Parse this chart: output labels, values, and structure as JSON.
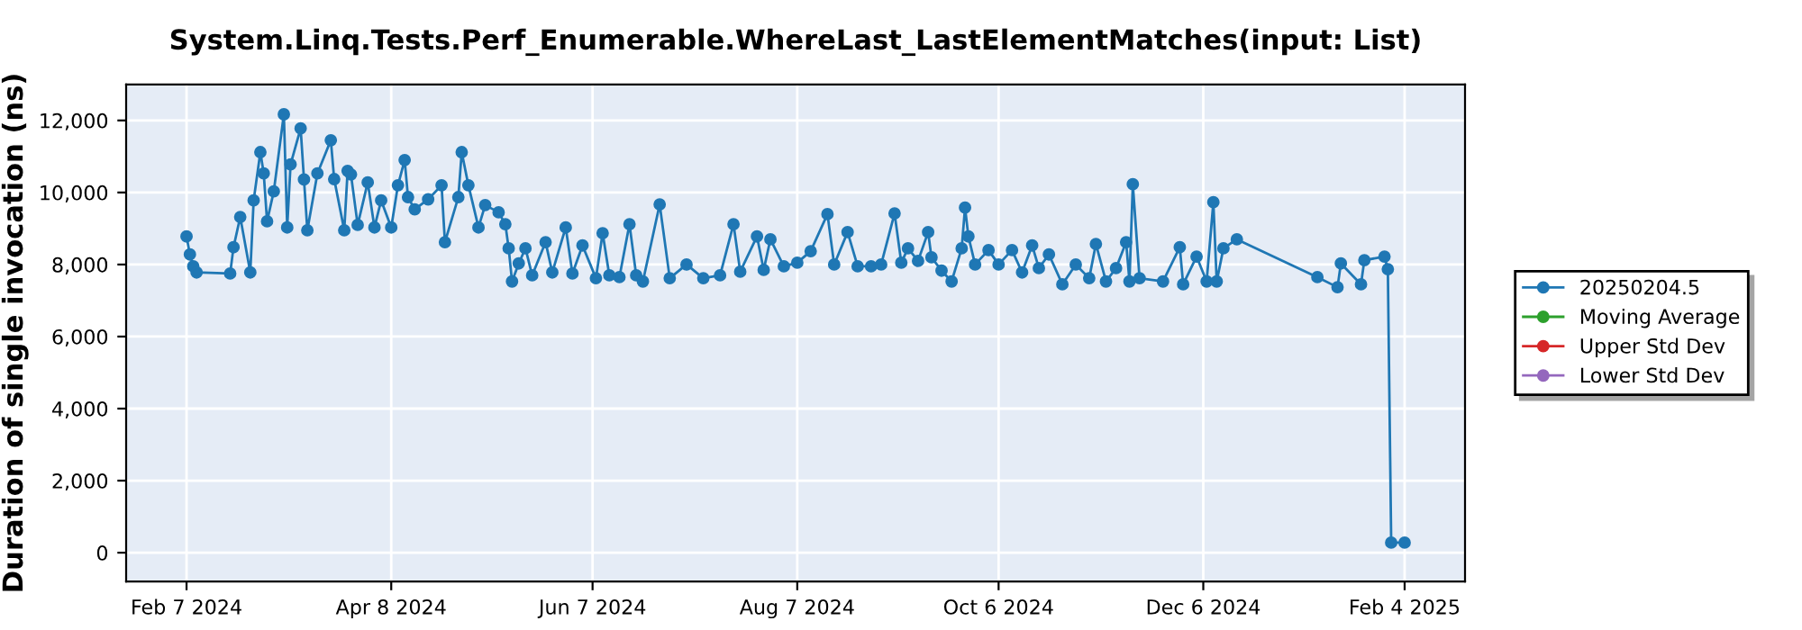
{
  "chart_data": {
    "type": "line",
    "title": "System.Linq.Tests.Perf_Enumerable.WhereLast_LastElementMatches(input: List)",
    "ylabel": "Duration of single invocation (ns)",
    "xlim": [
      "2024-01-20",
      "2025-02-22"
    ],
    "xticks": [
      {
        "value": "2024-02-07",
        "label": "Feb 7 2024"
      },
      {
        "value": "2024-04-08",
        "label": "Apr 8 2024"
      },
      {
        "value": "2024-06-07",
        "label": "Jun 7 2024"
      },
      {
        "value": "2024-08-07",
        "label": "Aug 7 2024"
      },
      {
        "value": "2024-10-06",
        "label": "Oct 6 2024"
      },
      {
        "value": "2024-12-06",
        "label": "Dec 6 2024"
      },
      {
        "value": "2025-02-04",
        "label": "Feb 4 2025"
      }
    ],
    "ylim": [
      -800,
      13000
    ],
    "yticks": [
      0,
      {
        "value": 2000,
        "label": "2,000"
      },
      {
        "value": 4000,
        "label": "4,000"
      },
      {
        "value": 6000,
        "label": "6,000"
      },
      {
        "value": 8000,
        "label": "8,000"
      },
      {
        "value": 10000,
        "label": "10,000"
      },
      {
        "value": 12000,
        "label": "12,000"
      }
    ],
    "grid": true,
    "legend": "right",
    "marker": "circle",
    "line_style": "solid",
    "series": [
      {
        "name": "20250204.5",
        "color": "#1f77b4",
        "x": [
          "2024-02-07",
          "2024-02-08",
          "2024-02-09",
          "2024-02-10",
          "2024-02-20",
          "2024-02-21",
          "2024-02-23",
          "2024-02-26",
          "2024-02-27",
          "2024-02-29",
          "2024-03-01",
          "2024-03-02",
          "2024-03-04",
          "2024-03-07",
          "2024-03-08",
          "2024-03-09",
          "2024-03-12",
          "2024-03-13",
          "2024-03-14",
          "2024-03-17",
          "2024-03-21",
          "2024-03-22",
          "2024-03-25",
          "2024-03-26",
          "2024-03-27",
          "2024-03-29",
          "2024-04-01",
          "2024-04-03",
          "2024-04-05",
          "2024-04-08",
          "2024-04-10",
          "2024-04-12",
          "2024-04-13",
          "2024-04-15",
          "2024-04-19",
          "2024-04-23",
          "2024-04-24",
          "2024-04-28",
          "2024-04-29",
          "2024-05-01",
          "2024-05-04",
          "2024-05-06",
          "2024-05-10",
          "2024-05-12",
          "2024-05-13",
          "2024-05-14",
          "2024-05-16",
          "2024-05-18",
          "2024-05-20",
          "2024-05-24",
          "2024-05-26",
          "2024-05-30",
          "2024-06-01",
          "2024-06-04",
          "2024-06-08",
          "2024-06-10",
          "2024-06-12",
          "2024-06-15",
          "2024-06-18",
          "2024-06-20",
          "2024-06-22",
          "2024-06-27",
          "2024-06-30",
          "2024-07-05",
          "2024-07-10",
          "2024-07-15",
          "2024-07-19",
          "2024-07-21",
          "2024-07-26",
          "2024-07-28",
          "2024-07-30",
          "2024-08-03",
          "2024-08-07",
          "2024-08-11",
          "2024-08-16",
          "2024-08-18",
          "2024-08-22",
          "2024-08-25",
          "2024-08-29",
          "2024-09-01",
          "2024-09-05",
          "2024-09-07",
          "2024-09-09",
          "2024-09-12",
          "2024-09-15",
          "2024-09-16",
          "2024-09-19",
          "2024-09-22",
          "2024-09-25",
          "2024-09-26",
          "2024-09-27",
          "2024-09-29",
          "2024-10-03",
          "2024-10-06",
          "2024-10-10",
          "2024-10-13",
          "2024-10-16",
          "2024-10-18",
          "2024-10-21",
          "2024-10-25",
          "2024-10-29",
          "2024-11-02",
          "2024-11-04",
          "2024-11-07",
          "2024-11-10",
          "2024-11-13",
          "2024-11-14",
          "2024-11-15",
          "2024-11-17",
          "2024-11-24",
          "2024-11-29",
          "2024-11-30",
          "2024-12-04",
          "2024-12-07",
          "2024-12-09",
          "2024-12-10",
          "2024-12-12",
          "2024-12-16",
          "2025-01-09",
          "2025-01-15",
          "2025-01-16",
          "2025-01-22",
          "2025-01-23",
          "2025-01-29",
          "2025-01-30",
          "2025-01-31",
          "2025-02-04"
        ],
        "values": [
          8780,
          8280,
          7950,
          7780,
          7750,
          8480,
          9320,
          7780,
          9780,
          11120,
          10530,
          9200,
          10030,
          12170,
          9030,
          10780,
          11780,
          10360,
          8950,
          10530,
          11450,
          10370,
          8950,
          10600,
          10500,
          9100,
          10280,
          9030,
          9780,
          9030,
          10200,
          10900,
          9870,
          9530,
          9810,
          10200,
          8620,
          9870,
          11120,
          10200,
          9030,
          9650,
          9450,
          9120,
          8450,
          7530,
          8030,
          8450,
          7700,
          8620,
          7780,
          9030,
          7750,
          8530,
          7620,
          8870,
          7700,
          7650,
          9120,
          7700,
          7530,
          9670,
          7620,
          8000,
          7620,
          7700,
          9120,
          7800,
          8780,
          7850,
          8700,
          7950,
          8050,
          8370,
          9400,
          8000,
          8900,
          7950,
          7950,
          8000,
          9420,
          8050,
          8450,
          8100,
          8900,
          8200,
          7830,
          7530,
          8450,
          9580,
          8780,
          8000,
          8400,
          8000,
          8400,
          7780,
          8530,
          7900,
          8280,
          7450,
          8000,
          7620,
          8570,
          7530,
          7900,
          8620,
          7530,
          10230,
          7620,
          7530,
          8480,
          7450,
          8220,
          7530,
          9730,
          7530,
          8450,
          8700,
          7650,
          7370,
          8030,
          7450,
          8120,
          8220,
          7870,
          280,
          280
        ]
      },
      {
        "name": "Moving Average",
        "color": "#2ca02c"
      },
      {
        "name": "Upper Std Dev",
        "color": "#d62728"
      },
      {
        "name": "Lower Std Dev",
        "color": "#9467bd"
      }
    ]
  }
}
